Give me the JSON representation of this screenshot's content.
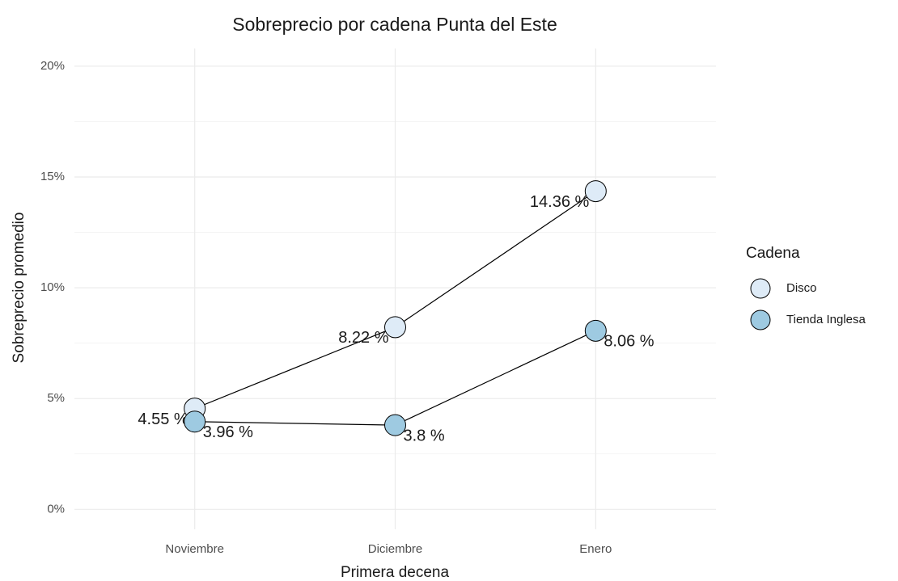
{
  "chart_data": {
    "type": "line",
    "title": "Sobreprecio por cadena Punta del Este",
    "x_label": "Primera decena",
    "y_label": "Sobreprecio promedio",
    "categories": [
      "Noviembre",
      "Diciembre",
      "Enero"
    ],
    "series": [
      {
        "name": "Disco",
        "color": "#deebf7",
        "values": [
          4.55,
          8.22,
          14.36
        ],
        "value_labels": [
          "4.55 %",
          "8.22 %",
          "14.36 %"
        ]
      },
      {
        "name": "Tienda Inglesa",
        "color": "#9ecae1",
        "values": [
          3.96,
          3.8,
          8.06
        ],
        "value_labels": [
          "3.96 %",
          "3.8 %",
          "8.06 %"
        ]
      }
    ],
    "ylim": [
      -0.9,
      20.8
    ],
    "yticks": [
      {
        "value": 0,
        "label": "0%"
      },
      {
        "value": 5,
        "label": "5%"
      },
      {
        "value": 10,
        "label": "10%"
      },
      {
        "value": 15,
        "label": "15%"
      },
      {
        "value": 20,
        "label": "20%"
      }
    ],
    "y_minor_ticks": [
      2.5,
      7.5,
      12.5,
      17.5
    ],
    "grid": true,
    "legend_title": "Cadena",
    "legend_position": "right"
  }
}
